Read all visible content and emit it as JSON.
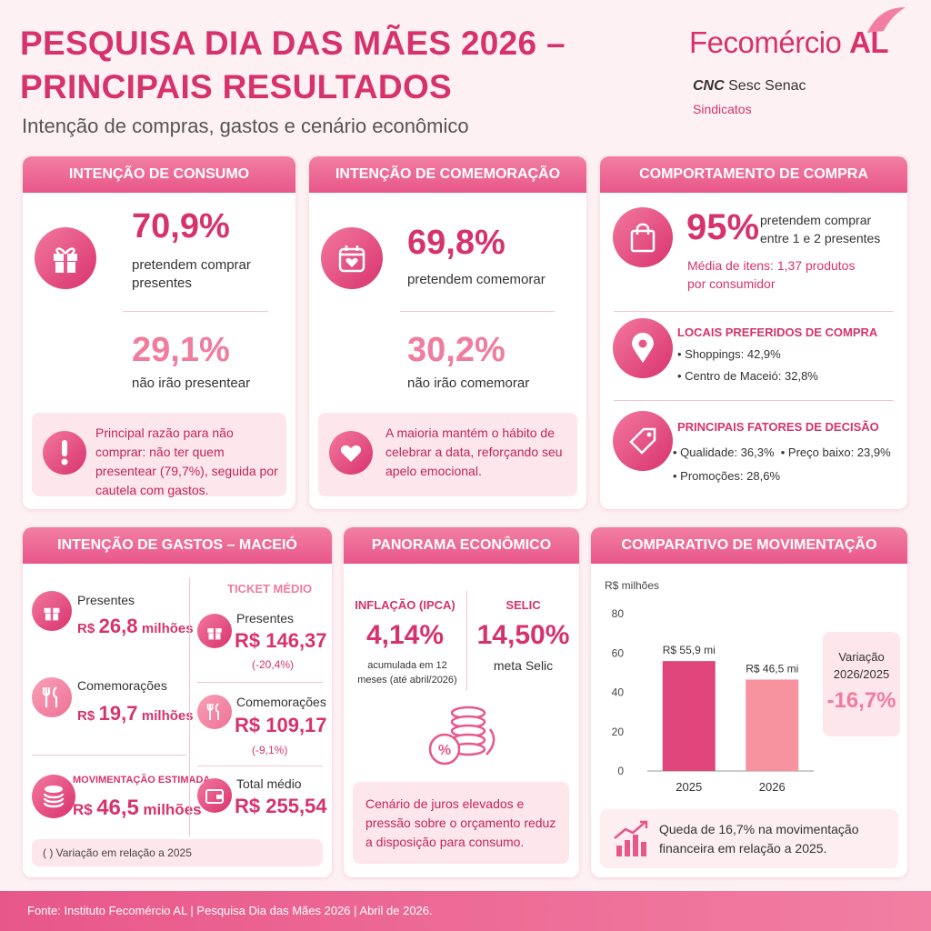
{
  "header": {
    "title": [
      "PESQUISA DIA DAS MÃES 2026 –",
      "PRINCIPAIS RESULTADOS"
    ],
    "subtitle": "Intenção de compras, gastos e cenário econômico"
  },
  "logo": {
    "name": "Fecomércio",
    "state": "AL",
    "partners": [
      "CNC",
      "Sesc",
      "Senac"
    ],
    "unions": "Sindicatos"
  },
  "consumo": {
    "title": "INTENÇÃO DE CONSUMO",
    "main": {
      "value": "70,9%",
      "text": "pretendem comprar presentes"
    },
    "secondary": {
      "value": "29,1%",
      "text": "não irão presentear"
    },
    "note": "Principal razão para não comprar: não ter quem presentear (79,7%), seguida por cautela com gastos."
  },
  "comemoracao": {
    "title": "INTENÇÃO DE COMEMORAÇÃO",
    "main": {
      "value": "69,8%",
      "text": "pretendem comemorar"
    },
    "secondary": {
      "value": "30,2%",
      "text": "não irão comemorar"
    },
    "note": "A maioria mantém o hábito de celebrar a data, reforçando seu apelo emocional."
  },
  "comportamento": {
    "title": "COMPORTAMENTO DE COMPRA",
    "main": {
      "value": "95%",
      "text": "pretendem comprar entre 1 e 2 presentes",
      "detail": "Média de itens: 1,37 produtos por consumidor"
    },
    "locais": {
      "title": "LOCAIS PREFERIDOS DE COMPRA",
      "items": [
        "Shoppings: 42,9%",
        "Centro de Maceió: 32,8%"
      ]
    },
    "fatores": {
      "title": "PRINCIPAIS FATORES DE DECISÃO",
      "items": [
        "Qualidade: 36,3%",
        "Preço baixo: 23,9%",
        "Promoções: 28,6%"
      ]
    }
  },
  "gastos": {
    "title": "INTENÇÃO DE GASTOS – MACEIÓ",
    "presentes": {
      "label": "Presentes",
      "prefix": "R$",
      "value": "26,8",
      "unit": "milhões"
    },
    "comemoracoes": {
      "label": "Comemorações",
      "prefix": "R$",
      "value": "19,7",
      "unit": "milhões"
    },
    "movimentacao": {
      "label": "MOVIMENTAÇÃO ESTIMADA",
      "prefix": "R$",
      "value": "46,5",
      "unit": "milhões"
    },
    "ticket": {
      "title": "TICKET MÉDIO",
      "items": [
        {
          "label": "Presentes",
          "value": "R$ 146,37",
          "change": "(-20,4%)"
        },
        {
          "label": "Comemorações",
          "value": "R$ 109,17",
          "change": "(-9,1%)"
        },
        {
          "label": "Total médio",
          "value": "R$ 255,54"
        }
      ]
    },
    "footnote": "( )  Variação em relação a 2025"
  },
  "panorama": {
    "title": "PANORAMA ECONÔMICO",
    "inflacao": {
      "label": "INFLAÇÃO (IPCA)",
      "value": "4,14%",
      "text": "acumulada em 12 meses (até abril/2026)"
    },
    "selic": {
      "label": "SELIC",
      "value": "14,50%",
      "text": "meta Selic"
    },
    "note": "Cenário de juros elevados e pressão sobre o orçamento reduz a disposição para consumo."
  },
  "movimentacao": {
    "title": "COMPARATIVO DE MOVIMENTAÇÃO",
    "chart": {
      "type": "bar",
      "y_label": "R$ milhões",
      "categories": [
        "2025",
        "2026"
      ],
      "values": [
        55.9,
        46.5
      ],
      "value_labels": [
        "R$ 55,9 mi",
        "R$ 46,5 mi"
      ],
      "colors": [
        "#e0457c",
        "#f7929f"
      ],
      "ylim": [
        0,
        80
      ],
      "yticks": [
        0,
        20,
        40,
        60,
        80
      ]
    },
    "variation": {
      "label": "Variação 2026/2025",
      "value": "-16,7%"
    },
    "note": "Queda de 16,7% na movimentação financeira em relação a 2025."
  },
  "footer": "Fonte: Instituto Fecomércio AL | Pesquisa Dia das Mães 2026 | Abril de 2026."
}
